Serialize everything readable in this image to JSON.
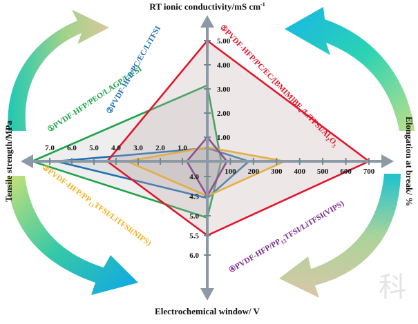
{
  "chart_data": {
    "type": "radar",
    "axes": {
      "top": {
        "label": "RT ionic conductivity/mS cm",
        "sup": "-1",
        "ticks": [
          "1.00",
          "2.00",
          "3.00",
          "4.00",
          "5.00"
        ]
      },
      "right": {
        "label": "Elongation at break/ %",
        "ticks": [
          "100",
          "200",
          "300",
          "400",
          "500",
          "600",
          "700"
        ]
      },
      "bottom": {
        "label": "Electrochemical window/ V",
        "ticks": [
          "4.0",
          "4.5",
          "5.0",
          "5.5",
          "6.0"
        ]
      },
      "left": {
        "label": "Tensile strength/MPa",
        "ticks": [
          "1.0",
          "2.0",
          "3.0",
          "4.0",
          "5.0",
          "6.0",
          "7.0"
        ]
      }
    },
    "series": [
      {
        "number": "①",
        "name": "PVDF-HFP/PEO/LAGP/LiFSI",
        "color": "#1fa24a",
        "values": {
          "conductivity_mS_cm": 3.15,
          "elongation_pct": 60,
          "window_V": 5.05,
          "tensile_MPa": 7.8
        }
      },
      {
        "number": "②",
        "name": "PVDF-HFP/PC/EC/LiTFSI",
        "color": "#1f6fb5",
        "values": {
          "conductivity_mS_cm": 0.55,
          "elongation_pct": 180,
          "window_V": 4.55,
          "tensile_MPa": 6.7
        }
      },
      {
        "number": "③",
        "name": "PVDF-HFP/PP13TFSI/LiTFSI(NIPS)",
        "color": "#f2b01e",
        "values": {
          "conductivity_mS_cm": 0.58,
          "elongation_pct": 335,
          "window_V": 4.5,
          "tensile_MPa": 3.5
        }
      },
      {
        "number": "④",
        "name": "PVDF-HFP/PP13TFSI/LiTFSI(VIPS)",
        "color": "#7a2d8c",
        "values": {
          "conductivity_mS_cm": 1.0,
          "elongation_pct": 85,
          "window_V": 4.5,
          "tensile_MPa": 0.8
        }
      },
      {
        "number": "⑤",
        "name": "PVDF-HFP/PC/EC/[BMIM]BF4/LiTFSI/Al2O3",
        "color": "#e0162b",
        "values": {
          "conductivity_mS_cm": 5.0,
          "elongation_pct": 700,
          "window_V": 5.5,
          "tensile_MPa": 4.4
        }
      }
    ],
    "labels": {
      "s1": {
        "pre": "①PVDF-HFP/PEO/LAGP/LiFSI"
      },
      "s2": {
        "pre": "②PVDF-HFP/PC/EC/LiTFSI"
      },
      "s3": {
        "pre": "③PVDF-HFP/PP",
        "sub": "13",
        "post": "TFSI/LiTFSI(NIPS)"
      },
      "s4": {
        "pre": "④PVDF-HFP/PP",
        "sub": "13",
        "post": "TFSI/LiTFSI(VIPS)"
      },
      "s5": {
        "pre": "⑤PVDF-HFP/PC/EC/[BMIM]BF",
        "sub": "4",
        "post": "/LiTFSI/Al",
        "sub2": "2",
        "post2": "O",
        "sub3": "3"
      }
    },
    "watermark": "科",
    "grid": false
  }
}
